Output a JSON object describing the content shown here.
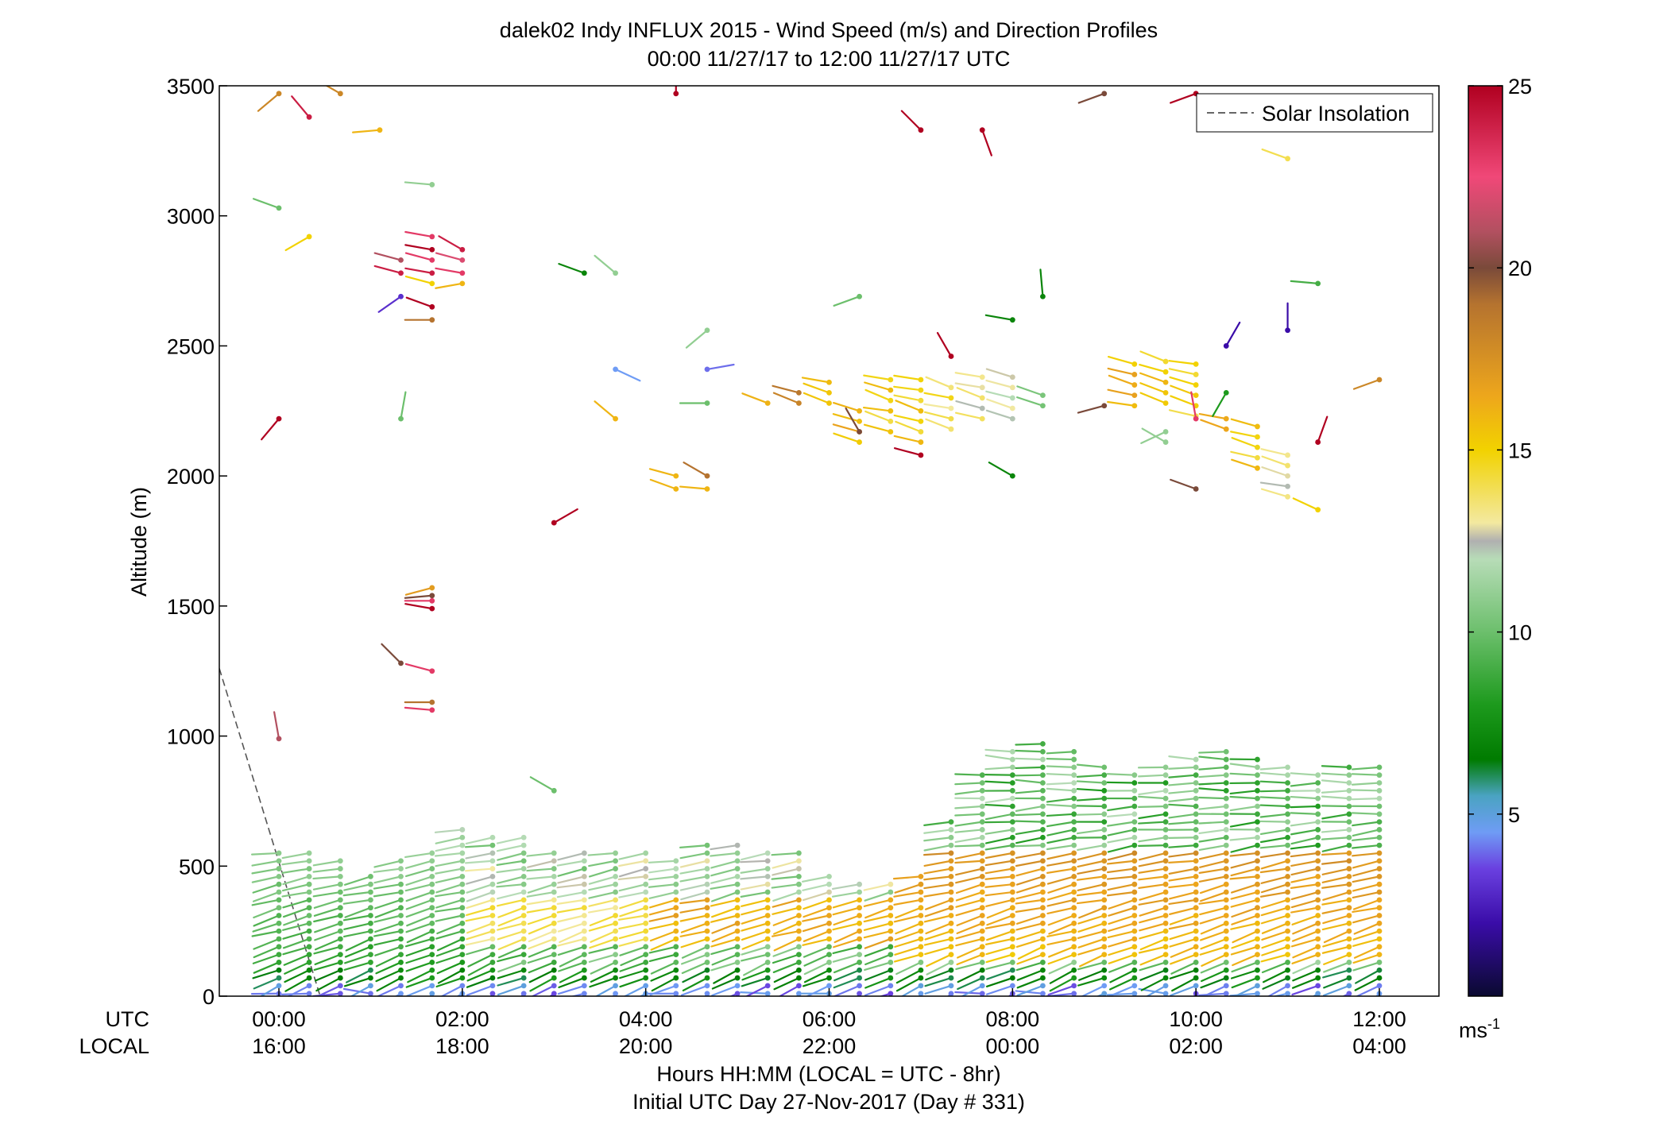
{
  "chart_data": {
    "type": "scatter",
    "title": "dalek02 Indy INFLUX 2015 - Wind Speed (m/s) and Direction Profiles",
    "subtitle": "00:00 11/27/17 to 12:00 11/27/17  UTC",
    "xlabel": "Hours HH:MM  (LOCAL = UTC - 8hr)",
    "xlabel2": "Initial UTC Day 27-Nov-2017 (Day # 331)",
    "ylabel": "Altitude (m)",
    "xlim": [
      -0.65,
      12.65
    ],
    "ylim": [
      0,
      3500
    ],
    "grid": false,
    "x_row_labels": [
      "UTC",
      "LOCAL"
    ],
    "x_ticks": [
      {
        "utc": "00:00",
        "local": "16:00",
        "x": 0
      },
      {
        "utc": "02:00",
        "local": "18:00",
        "x": 2
      },
      {
        "utc": "04:00",
        "local": "20:00",
        "x": 4
      },
      {
        "utc": "06:00",
        "local": "22:00",
        "x": 6
      },
      {
        "utc": "08:00",
        "local": "00:00",
        "x": 8
      },
      {
        "utc": "10:00",
        "local": "02:00",
        "x": 10
      },
      {
        "utc": "12:00",
        "local": "04:00",
        "x": 12
      }
    ],
    "y_ticks": [
      0,
      500,
      1000,
      1500,
      2000,
      2500,
      3000,
      3500
    ],
    "colorbar": {
      "label": "ms",
      "label_exponent": "-1",
      "range": [
        0,
        25
      ],
      "ticks": [
        5,
        10,
        15,
        20,
        25
      ],
      "stops": [
        {
          "v": 0,
          "c": "#0a0a30"
        },
        {
          "v": 2,
          "c": "#3a0ca8"
        },
        {
          "v": 3.5,
          "c": "#6a40e0"
        },
        {
          "v": 4.5,
          "c": "#6f9cf5"
        },
        {
          "v": 5.5,
          "c": "#4aa3c2"
        },
        {
          "v": 6.5,
          "c": "#007b00"
        },
        {
          "v": 8,
          "c": "#1d9a1d"
        },
        {
          "v": 10,
          "c": "#6cbf6c"
        },
        {
          "v": 12,
          "c": "#b7dcb7"
        },
        {
          "v": 12.5,
          "c": "#b0b0b0"
        },
        {
          "v": 13,
          "c": "#f3e9a0"
        },
        {
          "v": 15,
          "c": "#f2d200"
        },
        {
          "v": 16.5,
          "c": "#eda61c"
        },
        {
          "v": 19,
          "c": "#b5732f"
        },
        {
          "v": 20,
          "c": "#7a4a3a"
        },
        {
          "v": 21,
          "c": "#b25060"
        },
        {
          "v": 22.5,
          "c": "#f04878"
        },
        {
          "v": 25,
          "c": "#b00020"
        }
      ]
    },
    "legend": {
      "entries": [
        "Solar Insolation"
      ],
      "placement": "top-right",
      "style": "dashed"
    },
    "solar_insolation": {
      "x": [
        -0.65,
        0.45
      ],
      "y": [
        1260,
        0
      ]
    },
    "low_profiles": {
      "times": [
        0,
        0.33,
        0.67,
        1,
        1.33,
        1.67,
        2,
        2.33,
        2.67,
        3,
        3.33,
        3.67,
        4,
        4.33,
        4.67,
        5,
        5.33,
        5.67,
        6,
        6.33,
        6.67,
        7,
        7.33,
        7.67,
        8,
        8.33,
        8.67,
        9,
        9.33,
        9.67,
        10,
        10.33,
        10.67,
        11,
        11.33,
        11.67,
        12
      ],
      "tops": [
        560,
        560,
        520,
        470,
        530,
        570,
        640,
        620,
        610,
        570,
        560,
        560,
        560,
        540,
        580,
        600,
        570,
        560,
        480,
        440,
        440,
        480,
        680,
        850,
        940,
        990,
        960,
        880,
        860,
        880,
        920,
        940,
        930,
        880,
        860,
        900,
        900
      ],
      "step_m": 30
    },
    "points": [
      {
        "t": 0.0,
        "z": 3470,
        "s": 18,
        "d": 230
      },
      {
        "t": 0.33,
        "z": 3380,
        "s": 24,
        "d": 320
      },
      {
        "t": 0.67,
        "z": 3470,
        "s": 18,
        "d": 300
      },
      {
        "t": 1.1,
        "z": 3330,
        "s": 16,
        "d": 265
      },
      {
        "t": 0.0,
        "z": 3030,
        "s": 10,
        "d": 290
      },
      {
        "t": 0.33,
        "z": 2920,
        "s": 15,
        "d": 240
      },
      {
        "t": 1.67,
        "z": 3120,
        "s": 11,
        "d": 275
      },
      {
        "t": 1.33,
        "z": 2830,
        "s": 21,
        "d": 285
      },
      {
        "t": 1.67,
        "z": 2920,
        "s": 23,
        "d": 280
      },
      {
        "t": 2.0,
        "z": 2870,
        "s": 24,
        "d": 300
      },
      {
        "t": 1.67,
        "z": 2870,
        "s": 25,
        "d": 280
      },
      {
        "t": 1.67,
        "z": 2830,
        "s": 23,
        "d": 285
      },
      {
        "t": 2.0,
        "z": 2830,
        "s": 22,
        "d": 285
      },
      {
        "t": 1.33,
        "z": 2780,
        "s": 24,
        "d": 285
      },
      {
        "t": 1.67,
        "z": 2780,
        "s": 24,
        "d": 280
      },
      {
        "t": 2.0,
        "z": 2780,
        "s": 23,
        "d": 280
      },
      {
        "t": 1.67,
        "z": 2740,
        "s": 15,
        "d": 285
      },
      {
        "t": 2.0,
        "z": 2740,
        "s": 16,
        "d": 260
      },
      {
        "t": 1.33,
        "z": 2690,
        "s": 3,
        "d": 235
      },
      {
        "t": 1.67,
        "z": 2650,
        "s": 25,
        "d": 290
      },
      {
        "t": 1.67,
        "z": 2600,
        "s": 19,
        "d": 270
      },
      {
        "t": 0.0,
        "z": 2220,
        "s": 25,
        "d": 220
      },
      {
        "t": 1.33,
        "z": 2220,
        "s": 10,
        "d": 10
      },
      {
        "t": 3.33,
        "z": 2780,
        "s": 7,
        "d": 290
      },
      {
        "t": 3.67,
        "z": 2780,
        "s": 11,
        "d": 310
      },
      {
        "t": 3.0,
        "z": 1820,
        "s": 25,
        "d": 60
      },
      {
        "t": 3.67,
        "z": 2220,
        "s": 16,
        "d": 310
      },
      {
        "t": 3.67,
        "z": 2410,
        "s": 4.5,
        "d": 115
      },
      {
        "t": 4.67,
        "z": 2410,
        "s": 4,
        "d": 80
      },
      {
        "t": 4.67,
        "z": 2560,
        "s": 11,
        "d": 230
      },
      {
        "t": 4.67,
        "z": 2280,
        "s": 10,
        "d": 270
      },
      {
        "t": 4.33,
        "z": 2000,
        "s": 16,
        "d": 285
      },
      {
        "t": 4.67,
        "z": 2000,
        "s": 19,
        "d": 300
      },
      {
        "t": 4.33,
        "z": 1950,
        "s": 16,
        "d": 290
      },
      {
        "t": 4.67,
        "z": 1950,
        "s": 16,
        "d": 275
      },
      {
        "t": 0.0,
        "z": 990,
        "s": 21,
        "d": 350
      },
      {
        "t": 1.33,
        "z": 1280,
        "s": 20,
        "d": 315
      },
      {
        "t": 1.67,
        "z": 1250,
        "s": 23,
        "d": 285
      },
      {
        "t": 1.67,
        "z": 1130,
        "s": 19,
        "d": 270
      },
      {
        "t": 1.67,
        "z": 1100,
        "s": 23,
        "d": 275
      },
      {
        "t": 1.67,
        "z": 1570,
        "s": 17,
        "d": 255
      },
      {
        "t": 1.67,
        "z": 1540,
        "s": 20,
        "d": 265
      },
      {
        "t": 1.67,
        "z": 1520,
        "s": 23,
        "d": 270
      },
      {
        "t": 1.67,
        "z": 1490,
        "s": 25,
        "d": 280
      },
      {
        "t": 3.0,
        "z": 790,
        "s": 10,
        "d": 300
      },
      {
        "t": 4.33,
        "z": 3470,
        "s": 25,
        "d": 0
      },
      {
        "t": 7.0,
        "z": 3330,
        "s": 25,
        "d": 315
      },
      {
        "t": 7.67,
        "z": 3330,
        "s": 25,
        "d": 160
      },
      {
        "t": 9.0,
        "z": 3470,
        "s": 20,
        "d": 250
      },
      {
        "t": 10.0,
        "z": 3470,
        "s": 25,
        "d": 250
      },
      {
        "t": 11.0,
        "z": 3220,
        "s": 14,
        "d": 290
      },
      {
        "t": 8.0,
        "z": 2600,
        "s": 7,
        "d": 280
      },
      {
        "t": 8.33,
        "z": 2690,
        "s": 7,
        "d": 355
      },
      {
        "t": 6.33,
        "z": 2690,
        "s": 10,
        "d": 250
      },
      {
        "t": 7.33,
        "z": 2460,
        "s": 25,
        "d": 330
      },
      {
        "t": 10.33,
        "z": 2500,
        "s": 2,
        "d": 30
      },
      {
        "t": 11.0,
        "z": 2560,
        "s": 2,
        "d": 0
      },
      {
        "t": 11.33,
        "z": 2740,
        "s": 9,
        "d": 275
      },
      {
        "t": 12.0,
        "z": 2370,
        "s": 18,
        "d": 250
      },
      {
        "t": 11.33,
        "z": 2130,
        "s": 25,
        "d": 20
      },
      {
        "t": 8.0,
        "z": 2000,
        "s": 7,
        "d": 300
      },
      {
        "t": 10.0,
        "z": 1950,
        "s": 20,
        "d": 290
      },
      {
        "t": 7.0,
        "z": 2080,
        "s": 25,
        "d": 285
      },
      {
        "t": 10.33,
        "z": 2320,
        "s": 8,
        "d": 210
      },
      {
        "t": 10.0,
        "z": 2220,
        "s": 23,
        "d": 350
      },
      {
        "t": 9.67,
        "z": 2170,
        "s": 11,
        "d": 245
      },
      {
        "t": 9.67,
        "z": 2130,
        "s": 11,
        "d": 300
      },
      {
        "t": 11.33,
        "z": 1870,
        "s": 15,
        "d": 295
      },
      {
        "t": 9.0,
        "z": 2270,
        "s": 20,
        "d": 255
      },
      {
        "t": 6.33,
        "z": 2170,
        "s": 20,
        "d": 330
      }
    ],
    "mid_columns": [
      {
        "t": 5.33,
        "z0": 2280,
        "z1": 2280,
        "s": 16
      },
      {
        "t": 5.67,
        "z0": 2280,
        "z1": 2320,
        "s": 18
      },
      {
        "t": 6.0,
        "z0": 2280,
        "z1": 2370,
        "s": 16
      },
      {
        "t": 6.33,
        "z0": 2130,
        "z1": 2270,
        "s": 16
      },
      {
        "t": 6.67,
        "z0": 2170,
        "z1": 2370,
        "s": 15
      },
      {
        "t": 7.0,
        "z0": 2130,
        "z1": 2370,
        "s": 15
      },
      {
        "t": 7.33,
        "z0": 2180,
        "z1": 2370,
        "s": 14
      },
      {
        "t": 7.67,
        "z0": 2220,
        "z1": 2410,
        "s": 13
      },
      {
        "t": 8.0,
        "z0": 2220,
        "z1": 2410,
        "s": 12
      },
      {
        "t": 8.33,
        "z0": 2270,
        "z1": 2320,
        "s": 11
      },
      {
        "t": 9.33,
        "z0": 2270,
        "z1": 2460,
        "s": 16
      },
      {
        "t": 9.67,
        "z0": 2280,
        "z1": 2460,
        "s": 15
      },
      {
        "t": 10.0,
        "z0": 2230,
        "z1": 2460,
        "s": 15
      },
      {
        "t": 10.33,
        "z0": 2180,
        "z1": 2220,
        "s": 16
      },
      {
        "t": 10.67,
        "z0": 2030,
        "z1": 2220,
        "s": 15
      },
      {
        "t": 11.0,
        "z0": 1920,
        "z1": 2080,
        "s": 13
      }
    ]
  }
}
